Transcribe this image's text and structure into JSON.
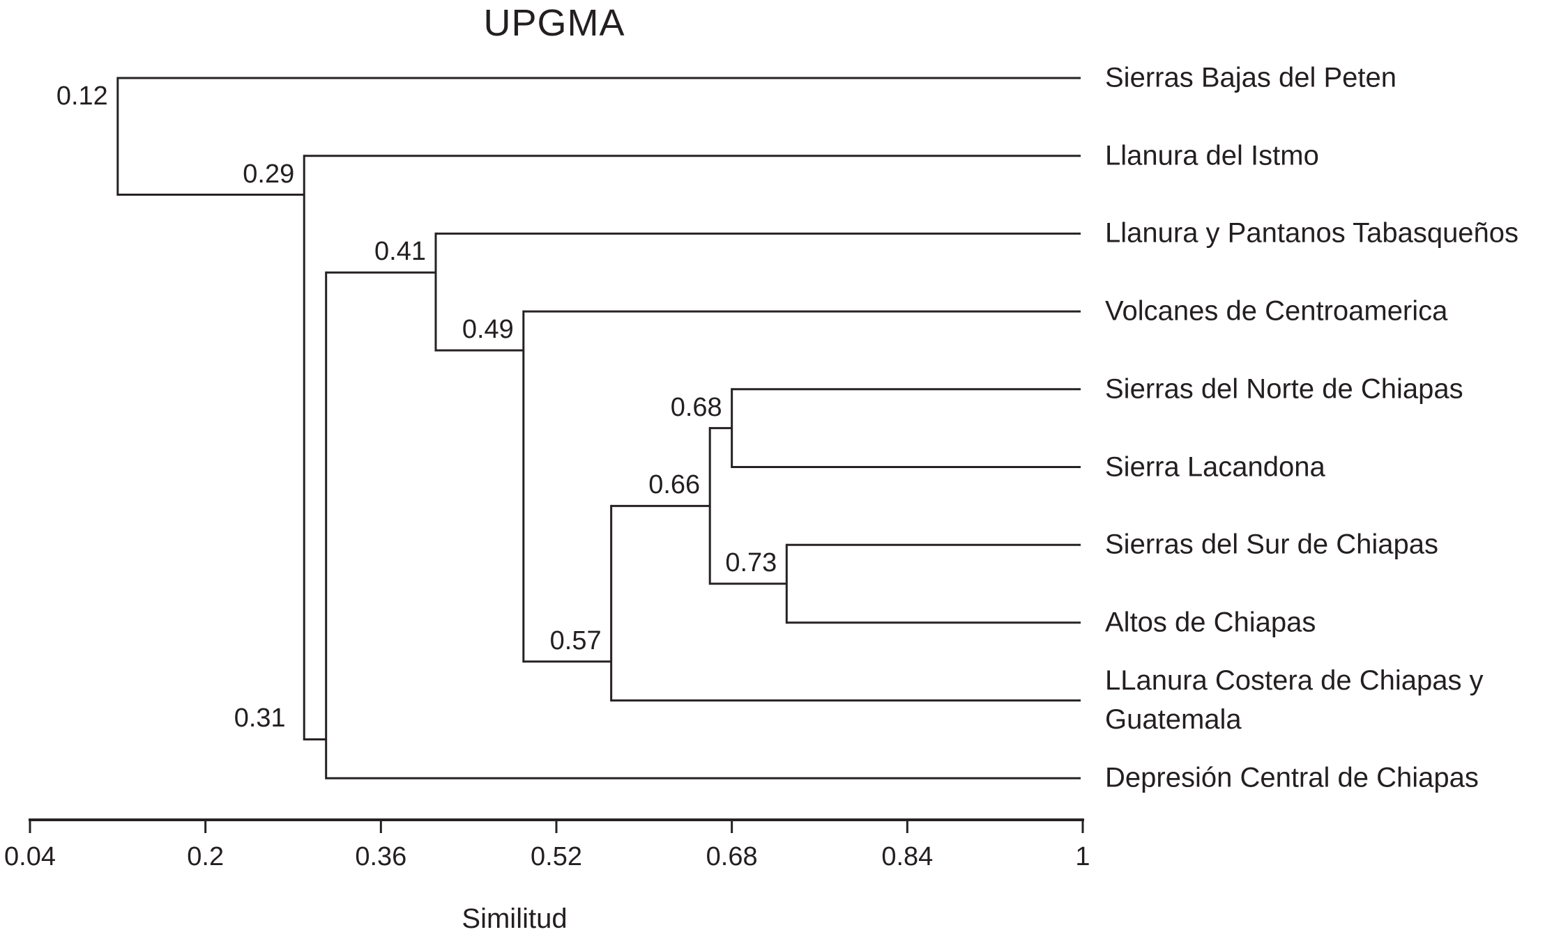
{
  "chart_data": {
    "type": "dendrogram",
    "title": "UPGMA",
    "xlabel": "Similitud",
    "axis": {
      "orientation": "horizontal-bottom",
      "range": [
        0.04,
        1.0
      ],
      "ticks": [
        0.04,
        0.2,
        0.36,
        0.52,
        0.68,
        0.84,
        1
      ],
      "tick_labels": [
        "0.04",
        "0.2",
        "0.36",
        "0.52",
        "0.68",
        "0.84",
        "1"
      ]
    },
    "leaves": [
      "Sierras Bajas del Peten",
      "Llanura del Istmo",
      "Llanura y Pantanos Tabasqueños",
      "Volcanes de Centroamerica",
      "Sierras del Norte de Chiapas",
      "Sierra Lacandona",
      "Sierras del Sur de Chiapas",
      "Altos de Chiapas",
      "LLanura Costera de Chiapas y\nGuatemala",
      "Depresión Central de Chiapas"
    ],
    "tree": {
      "label": "0.12",
      "similarity": 0.12,
      "children": [
        {
          "leaf": 0
        },
        {
          "label": "0.29",
          "similarity": 0.29,
          "children": [
            {
              "leaf": 1
            },
            {
              "label": "0.31",
              "similarity": 0.31,
              "children": [
                {
                  "label": "0.41",
                  "similarity": 0.41,
                  "children": [
                    {
                      "leaf": 2
                    },
                    {
                      "label": "0.49",
                      "similarity": 0.49,
                      "children": [
                        {
                          "leaf": 3
                        },
                        {
                          "label": "0.57",
                          "similarity": 0.57,
                          "children": [
                            {
                              "label": "0.66",
                              "similarity": 0.66,
                              "children": [
                                {
                                  "label": "0.68",
                                  "similarity": 0.68,
                                  "children": [
                                    {
                                      "leaf": 4
                                    },
                                    {
                                      "leaf": 5
                                    }
                                  ]
                                },
                                {
                                  "label": "0.73",
                                  "similarity": 0.73,
                                  "children": [
                                    {
                                      "leaf": 6
                                    },
                                    {
                                      "leaf": 7
                                    }
                                  ]
                                }
                              ]
                            },
                            {
                              "leaf": 8
                            }
                          ]
                        }
                      ]
                    }
                  ]
                },
                {
                  "leaf": 9
                }
              ]
            }
          ]
        }
      ]
    },
    "colors": {
      "line": "#262223",
      "text": "#231f20",
      "background": "#ffffff"
    }
  }
}
